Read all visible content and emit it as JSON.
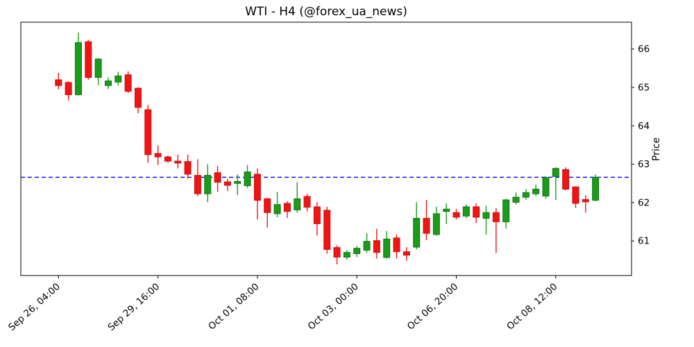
{
  "title": "WTI - H4 (@forex_ua_news)",
  "colors": {
    "background": "#ffffff",
    "up": "#1a9c1a",
    "up_edge": "#127112",
    "down": "#f01414",
    "down_edge": "#c91010",
    "hline": "#0000ff",
    "axis": "#000000",
    "text": "#000000"
  },
  "y_axis": {
    "label": "Price",
    "tick_labels": [
      "61",
      "62",
      "63",
      "64",
      "65",
      "66"
    ],
    "side": "right"
  },
  "x_axis": {
    "tick_labels": [
      "Sep 26, 04:00",
      "Sep 29, 16:00",
      "Oct 01, 08:00",
      "Oct 03, 00:00",
      "Oct 06, 20:00",
      "Oct 08, 12:00"
    ],
    "rotation_deg": -42
  },
  "hline": {
    "price": 62.66,
    "style": "dashed",
    "color": "#0000ff"
  },
  "chart_data": {
    "type": "candlestick",
    "title": "WTI - H4 (@forex_ua_news)",
    "ylabel": "Price",
    "ylim": [
      60.1,
      66.7
    ],
    "y_ticks": [
      61,
      62,
      63,
      64,
      65,
      66
    ],
    "grid": false,
    "hline": 62.66,
    "x_tick_indices": [
      0,
      10,
      20,
      30,
      40,
      50
    ],
    "x_tick_labels": [
      "Sep 26, 04:00",
      "Sep 29, 16:00",
      "Oct 01, 08:00",
      "Oct 03, 00:00",
      "Oct 06, 20:00",
      "Oct 08, 12:00"
    ],
    "ohlc_note": "each candle is [open, high, low, close], H4 bars",
    "ohlc": [
      [
        65.2,
        65.38,
        64.95,
        65.05
      ],
      [
        65.13,
        65.16,
        64.66,
        64.81
      ],
      [
        64.81,
        66.43,
        64.79,
        66.17
      ],
      [
        66.19,
        66.24,
        65.2,
        65.26
      ],
      [
        65.26,
        65.76,
        65.06,
        65.74
      ],
      [
        65.05,
        65.26,
        64.96,
        65.17
      ],
      [
        65.14,
        65.41,
        65.05,
        65.3
      ],
      [
        65.33,
        65.42,
        64.85,
        64.9
      ],
      [
        64.98,
        65.01,
        64.33,
        64.48
      ],
      [
        64.42,
        64.54,
        63.04,
        63.25
      ],
      [
        63.28,
        63.49,
        62.98,
        63.19
      ],
      [
        63.19,
        63.23,
        63.04,
        63.08
      ],
      [
        63.08,
        63.25,
        62.89,
        63.03
      ],
      [
        63.07,
        63.25,
        62.62,
        62.74
      ],
      [
        62.71,
        63.13,
        62.17,
        62.23
      ],
      [
        62.23,
        63.0,
        62.01,
        62.71
      ],
      [
        62.78,
        62.95,
        62.28,
        62.53
      ],
      [
        62.54,
        62.62,
        62.3,
        62.45
      ],
      [
        62.5,
        62.73,
        62.2,
        62.55
      ],
      [
        62.44,
        62.98,
        62.38,
        62.8
      ],
      [
        62.74,
        62.89,
        61.56,
        62.06
      ],
      [
        62.1,
        62.12,
        61.35,
        61.74
      ],
      [
        61.71,
        62.28,
        61.62,
        61.95
      ],
      [
        61.98,
        62.04,
        61.6,
        61.77
      ],
      [
        61.81,
        62.53,
        61.74,
        62.1
      ],
      [
        62.16,
        62.23,
        61.77,
        61.88
      ],
      [
        61.89,
        62.01,
        61.14,
        61.45
      ],
      [
        61.8,
        61.89,
        60.67,
        60.78
      ],
      [
        60.83,
        60.89,
        60.39,
        60.58
      ],
      [
        60.58,
        60.76,
        60.51,
        60.7
      ],
      [
        60.67,
        60.87,
        60.58,
        60.81
      ],
      [
        60.76,
        61.2,
        60.69,
        60.99
      ],
      [
        61.01,
        61.32,
        60.54,
        60.7
      ],
      [
        60.57,
        61.26,
        60.54,
        61.05
      ],
      [
        61.08,
        61.17,
        60.54,
        60.72
      ],
      [
        60.72,
        60.84,
        60.48,
        60.63
      ],
      [
        60.84,
        62.01,
        60.78,
        61.59
      ],
      [
        61.59,
        62.07,
        61.02,
        61.2
      ],
      [
        61.17,
        61.89,
        61.14,
        61.71
      ],
      [
        61.77,
        61.98,
        61.44,
        61.83
      ],
      [
        61.74,
        61.83,
        61.56,
        61.62
      ],
      [
        61.65,
        61.95,
        61.59,
        61.89
      ],
      [
        61.89,
        61.98,
        61.47,
        61.62
      ],
      [
        61.59,
        61.92,
        61.17,
        61.74
      ],
      [
        61.74,
        61.86,
        60.69,
        61.5
      ],
      [
        61.5,
        62.1,
        61.32,
        62.07
      ],
      [
        62.01,
        62.26,
        61.95,
        62.14
      ],
      [
        62.14,
        62.35,
        62.07,
        62.26
      ],
      [
        62.23,
        62.47,
        62.17,
        62.35
      ],
      [
        62.17,
        62.68,
        62.1,
        62.65
      ],
      [
        62.68,
        62.92,
        62.07,
        62.89
      ],
      [
        62.86,
        62.92,
        62.32,
        62.35
      ],
      [
        62.41,
        62.42,
        61.86,
        61.98
      ],
      [
        62.08,
        62.19,
        61.74,
        62.02
      ],
      [
        62.06,
        62.73,
        62.04,
        62.66
      ]
    ]
  }
}
